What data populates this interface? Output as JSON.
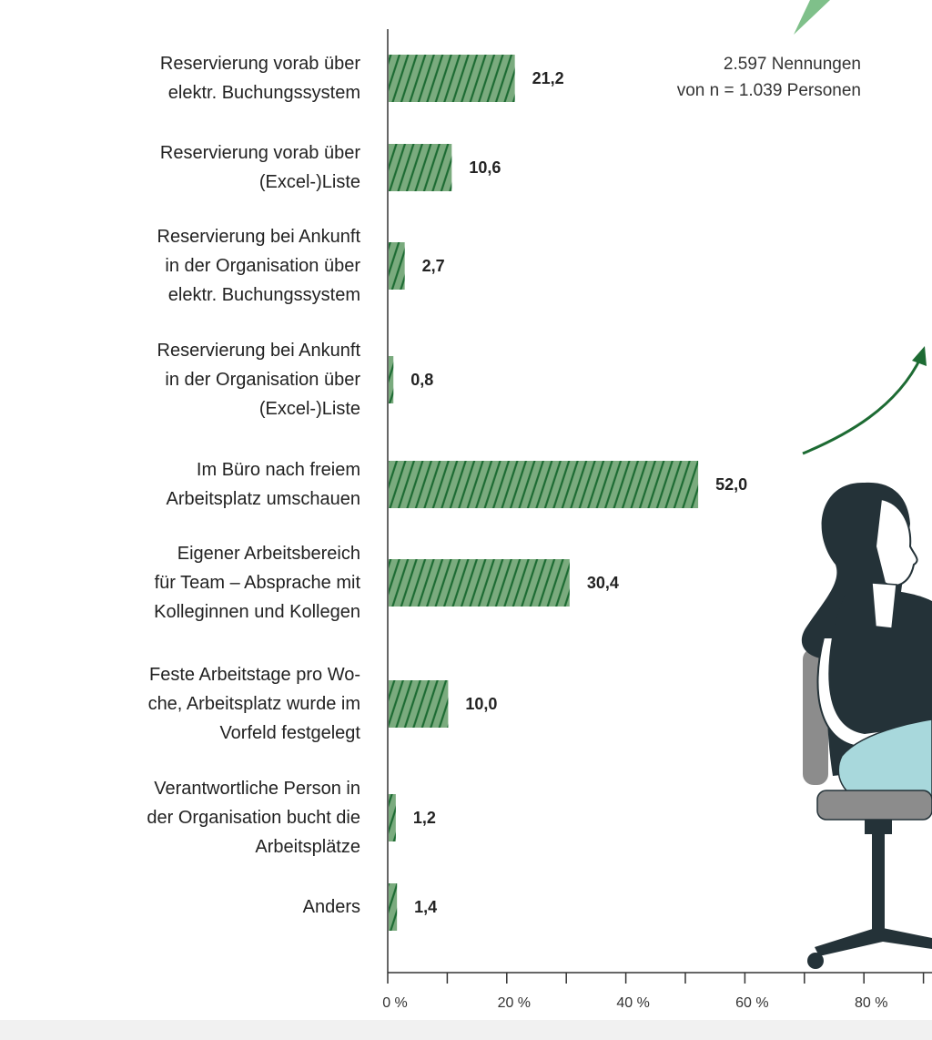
{
  "chart_data": {
    "type": "bar",
    "orientation": "horizontal",
    "categories": [
      [
        "Reservierung vorab über",
        "elektr. Buchungssystem"
      ],
      [
        "Reservierung vorab über",
        "(Excel-)Liste"
      ],
      [
        "Reservierung bei Ankunft",
        "in der Organisation über",
        "elektr. Buchungssystem"
      ],
      [
        "Reservierung bei Ankunft",
        "in der Organisation über",
        "(Excel-)Liste"
      ],
      [
        "Im Büro nach freiem",
        "Arbeitsplatz umschauen"
      ],
      [
        "Eigener Arbeitsbereich",
        "für Team – Absprache mit",
        "Kolleginnen und Kollegen"
      ],
      [
        "Feste Arbeitstage pro Wo-",
        "che, Arbeitsplatz wurde im",
        "Vorfeld festgelegt"
      ],
      [
        "Verantwortliche Person in",
        "der Organisation bucht die",
        "Arbeitsplätze"
      ],
      [
        "Anders"
      ]
    ],
    "values": [
      21.2,
      10.6,
      2.7,
      0.8,
      52.0,
      30.4,
      10.0,
      1.2,
      1.4
    ],
    "value_labels": [
      "21,2",
      "10,6",
      "2,7",
      "0,8",
      "52,0",
      "30,4",
      "10,0",
      "1,2",
      "1,4"
    ],
    "xlim": [
      0,
      100
    ],
    "x_ticks": [
      0,
      20,
      40,
      60,
      80
    ],
    "x_tick_labels": [
      "0 %",
      "20 %",
      "40 %",
      "60 %",
      "80 %"
    ],
    "bar_color": "#7aab7e",
    "hatch_color": "#1d6b33",
    "grid": false,
    "note": [
      "2.597 Nennungen",
      "von n = 1.039 Personen"
    ]
  },
  "illustration": {
    "subject": "woman-sitting-on-office-chair",
    "hair_color": "#243238",
    "skin_color": "#ffffff",
    "pants_color": "#a8d8dc",
    "chair_color": "#8c8c8c",
    "arrow_color": "#1d6b33",
    "leaf_color": "#7fc08a"
  }
}
